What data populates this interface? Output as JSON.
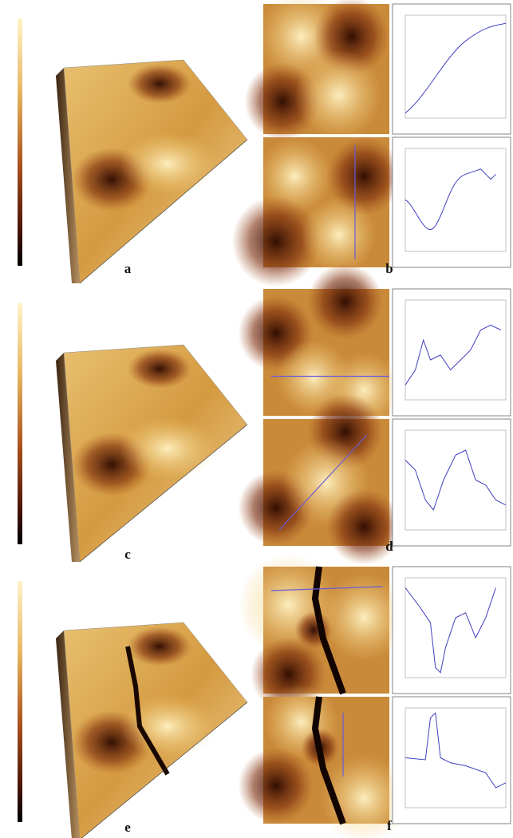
{
  "labels": [
    "a",
    "b",
    "c",
    "d",
    "e",
    "f"
  ]
}
